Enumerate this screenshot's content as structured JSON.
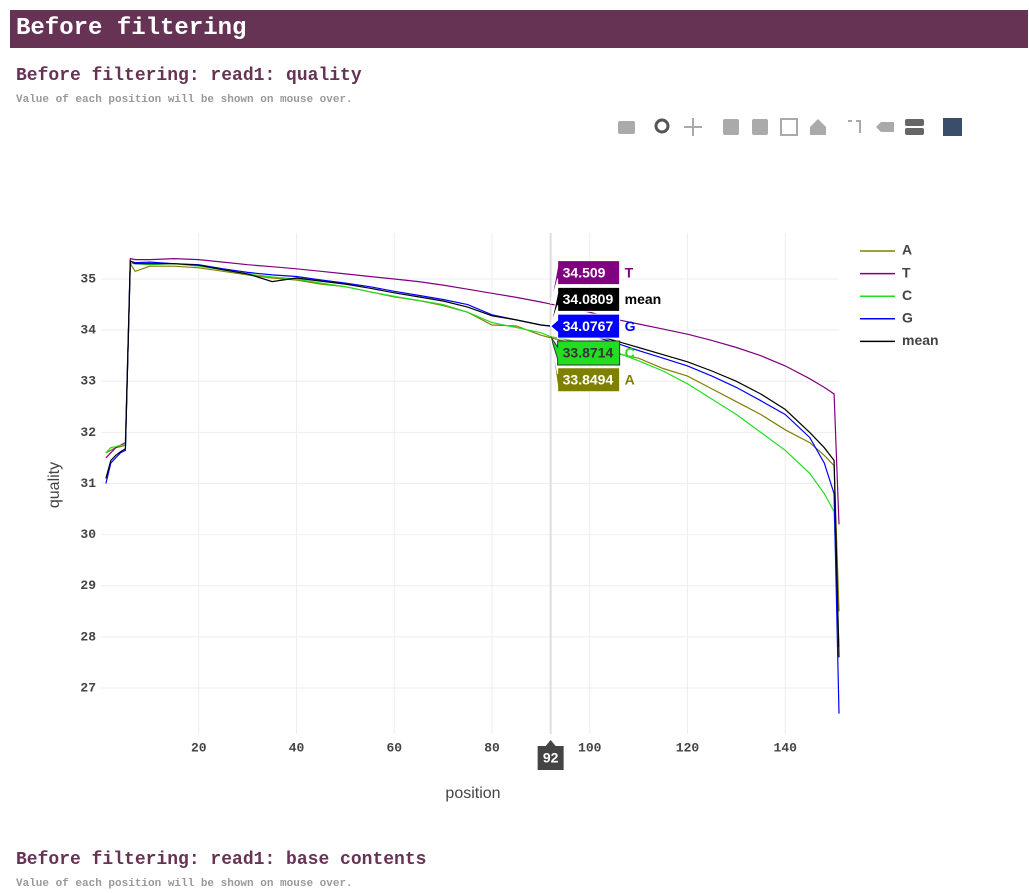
{
  "header": {
    "title": "Before filtering"
  },
  "section": {
    "title": "Before filtering: read1: quality",
    "note": "Value of each position will be shown on mouse over."
  },
  "next_section": {
    "title": "Before filtering: read1: base contents",
    "note": "Value of each position will be shown on mouse over."
  },
  "chart_data": {
    "type": "line",
    "x_label": "position",
    "y_label": "quality",
    "x": [
      1,
      2,
      3,
      4,
      5,
      6,
      7,
      10,
      15,
      20,
      25,
      30,
      35,
      40,
      45,
      50,
      55,
      60,
      65,
      70,
      75,
      80,
      85,
      90,
      92,
      95,
      100,
      105,
      110,
      115,
      120,
      125,
      130,
      135,
      140,
      145,
      148,
      150,
      151
    ],
    "series": [
      {
        "name": "A",
        "color": "#808000",
        "values": [
          31.6,
          31.65,
          31.7,
          31.72,
          31.75,
          35.3,
          35.15,
          35.25,
          35.25,
          35.22,
          35.15,
          35.08,
          35.02,
          34.98,
          34.9,
          34.85,
          34.75,
          34.65,
          34.58,
          34.48,
          34.35,
          34.1,
          34.08,
          33.9,
          33.8494,
          33.78,
          33.7,
          33.55,
          33.45,
          33.25,
          33.1,
          32.85,
          32.6,
          32.35,
          32.05,
          31.8,
          31.55,
          31.35,
          28.5
        ]
      },
      {
        "name": "T",
        "color": "#800080",
        "values": [
          31.5,
          31.6,
          31.7,
          31.75,
          31.8,
          35.4,
          35.38,
          35.38,
          35.4,
          35.38,
          35.33,
          35.28,
          35.24,
          35.2,
          35.15,
          35.1,
          35.05,
          35.0,
          34.95,
          34.88,
          34.8,
          34.72,
          34.64,
          34.55,
          34.509,
          34.45,
          34.35,
          34.22,
          34.12,
          34.02,
          33.92,
          33.8,
          33.66,
          33.5,
          33.3,
          33.05,
          32.88,
          32.75,
          30.2
        ]
      },
      {
        "name": "C",
        "color": "#22dd22",
        "values": [
          31.6,
          31.7,
          31.72,
          31.75,
          31.75,
          35.3,
          35.3,
          35.28,
          35.3,
          35.25,
          35.18,
          35.1,
          35.04,
          35.0,
          34.92,
          34.85,
          34.75,
          34.66,
          34.58,
          34.5,
          34.35,
          34.15,
          34.05,
          33.95,
          33.8714,
          33.82,
          33.72,
          33.58,
          33.4,
          33.2,
          32.95,
          32.65,
          32.35,
          32.0,
          31.65,
          31.2,
          30.8,
          30.45,
          27.8
        ]
      },
      {
        "name": "G",
        "color": "#0000ff",
        "values": [
          31.0,
          31.4,
          31.5,
          31.6,
          31.65,
          35.35,
          35.32,
          35.33,
          35.3,
          35.28,
          35.2,
          35.13,
          35.08,
          35.05,
          34.98,
          34.92,
          34.85,
          34.76,
          34.68,
          34.6,
          34.5,
          34.3,
          34.2,
          34.1,
          34.0767,
          34.02,
          33.9,
          33.76,
          33.6,
          33.45,
          33.3,
          33.1,
          32.88,
          32.62,
          32.35,
          31.9,
          31.4,
          30.8,
          26.5
        ]
      },
      {
        "name": "mean",
        "color": "#000000",
        "values": [
          31.1,
          31.45,
          31.55,
          31.62,
          31.68,
          35.35,
          35.3,
          35.3,
          35.3,
          35.27,
          35.18,
          35.1,
          34.95,
          35.02,
          34.96,
          34.9,
          34.82,
          34.73,
          34.65,
          34.57,
          34.45,
          34.28,
          34.2,
          34.1,
          34.0809,
          34.03,
          33.92,
          33.8,
          33.66,
          33.52,
          33.38,
          33.2,
          33.0,
          32.75,
          32.45,
          32.0,
          31.7,
          31.45,
          27.6
        ]
      }
    ],
    "xlim": [
      0,
      151
    ],
    "ylim": [
      26.1,
      35.9
    ],
    "xticks": [
      20,
      40,
      60,
      80,
      100,
      120,
      140
    ],
    "yticks": [
      27,
      28,
      29,
      30,
      31,
      32,
      33,
      34,
      35
    ],
    "grid": true,
    "legend": "right",
    "hover": {
      "x": 92,
      "values": [
        33.8494,
        34.509,
        33.8714,
        34.0767,
        34.0809
      ]
    }
  }
}
